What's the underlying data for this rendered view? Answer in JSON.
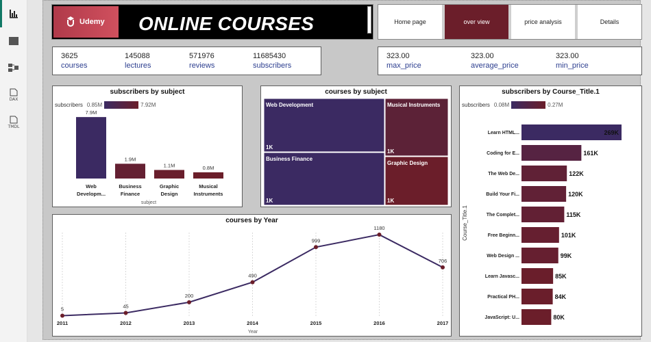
{
  "banner": {
    "logo": "Udemy",
    "title": "ONLINE COURSES"
  },
  "nav": [
    {
      "label": "Home page",
      "active": false
    },
    {
      "label": "over view",
      "active": true
    },
    {
      "label": "price analysis",
      "active": false
    },
    {
      "label": "Details",
      "active": false
    }
  ],
  "rail": {
    "dax_label": "DAX",
    "tmdl_label": "TMDL"
  },
  "kpis_left": [
    {
      "value": "3625",
      "label": "courses"
    },
    {
      "value": "145088",
      "label": "lectures"
    },
    {
      "value": "571976",
      "label": "reviews"
    },
    {
      "value": "11685430",
      "label": "subscribers"
    }
  ],
  "kpis_right": [
    {
      "value": "323.00",
      "label": "max_price"
    },
    {
      "value": "323.00",
      "label": "average_price"
    },
    {
      "value": "323.00",
      "label": "min_price"
    }
  ],
  "colors": {
    "dark_purple": "#3b2a62",
    "maroon": "#6b1e2a",
    "line": "#3b2a62",
    "point": "#6b1e2a"
  },
  "subjects_chart": {
    "title": "subscribers by subject",
    "legend": {
      "field": "subscribers",
      "min": "0.85M",
      "max": "7.92M"
    },
    "xlabel": "subject"
  },
  "treemap_chart": {
    "title": "courses by subject"
  },
  "titles_chart": {
    "title": "subscribers by Course_Title.1",
    "legend": {
      "field": "subscribers",
      "min": "0.08M",
      "max": "0.27M"
    },
    "ylabel": "Course_Title.1"
  },
  "year_chart": {
    "title": "courses by Year",
    "xlabel": "Year"
  },
  "chart_data": [
    {
      "type": "bar",
      "title": "subscribers by subject",
      "xlabel": "subject",
      "categories": [
        "Web Developm...",
        "Business Finance",
        "Graphic Design",
        "Musical Instruments"
      ],
      "values": [
        7.9,
        1.9,
        1.1,
        0.8
      ],
      "data_labels": [
        "7.9M",
        "1.9M",
        "1.1M",
        "0.8M"
      ],
      "unit": "M"
    },
    {
      "type": "heatmap",
      "title": "courses by subject",
      "categories": [
        "Web Development",
        "Business Finance",
        "Musical Instruments",
        "Graphic Design"
      ],
      "data_labels": [
        "1K",
        "1K",
        "1K",
        "1K"
      ]
    },
    {
      "type": "bar",
      "title": "subscribers by Course_Title.1",
      "ylabel": "Course_Title.1",
      "categories": [
        "Learn HTML...",
        "Coding for E...",
        "The Web De...",
        "Build Your Fi...",
        "The Complet...",
        "Free Beginn...",
        "Web Design ...",
        "Learn Javasc...",
        "Practical PH...",
        "JavaScript: U..."
      ],
      "values": [
        269,
        161,
        122,
        120,
        115,
        101,
        99,
        85,
        84,
        80
      ],
      "data_labels": [
        "269K",
        "161K",
        "122K",
        "120K",
        "115K",
        "101K",
        "99K",
        "85K",
        "84K",
        "80K"
      ],
      "unit": "K"
    },
    {
      "type": "line",
      "title": "courses by Year",
      "xlabel": "Year",
      "x": [
        "2011",
        "2012",
        "2013",
        "2014",
        "2015",
        "2016",
        "2017"
      ],
      "values": [
        5,
        45,
        200,
        490,
        999,
        1180,
        706
      ],
      "ylim": [
        0,
        1250
      ]
    }
  ]
}
